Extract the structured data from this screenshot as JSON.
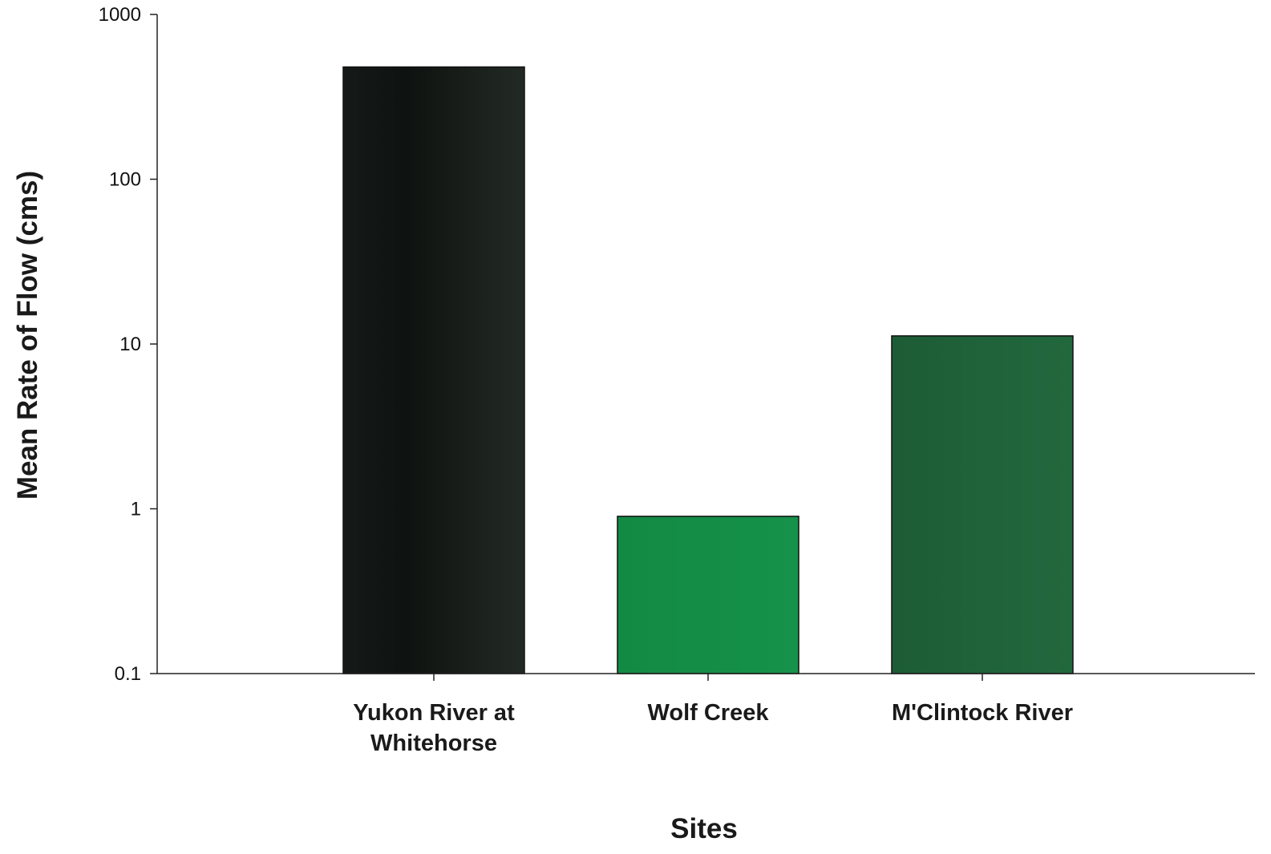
{
  "chart_data": {
    "type": "bar",
    "title": "",
    "xlabel": "Sites",
    "ylabel": "Mean Rate of Flow (cms)",
    "yscale": "log",
    "ylim": [
      0.1,
      1000
    ],
    "yticks": [
      0.1,
      1,
      10,
      100,
      1000
    ],
    "ytick_labels": [
      "0.1",
      "1",
      "10",
      "100",
      "1000"
    ],
    "grid": false,
    "legend": "none",
    "categories": [
      [
        "Yukon River at",
        "Whitehorse"
      ],
      [
        "Wolf Creek"
      ],
      [
        "M'Clintock River"
      ]
    ],
    "values": [
      480,
      0.9,
      11.2
    ],
    "colors": [
      "#1c221e",
      "#138a44",
      "#1f6239"
    ]
  }
}
